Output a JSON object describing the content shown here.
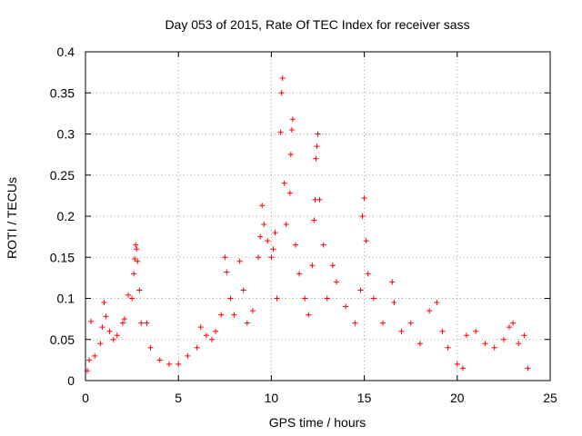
{
  "chart_data": {
    "type": "scatter",
    "title": "Day 053 of 2015, Rate Of TEC Index for receiver sass",
    "xlabel": "GPS time / hours",
    "ylabel": "ROTI / TECUs",
    "xlim": [
      0,
      25
    ],
    "ylim": [
      0,
      0.4
    ],
    "xticks": [
      "0",
      "5",
      "10",
      "15",
      "20",
      "25"
    ],
    "yticks": [
      "0",
      "0.05",
      "0.1",
      "0.15",
      "0.2",
      "0.25",
      "0.3",
      "0.35",
      "0.4"
    ],
    "grid": true,
    "marker": "+",
    "color": "#ff0000",
    "series": [
      {
        "points": [
          [
            0.1,
            0.012
          ],
          [
            0.2,
            0.025
          ],
          [
            0.3,
            0.072
          ],
          [
            0.5,
            0.03
          ],
          [
            0.8,
            0.045
          ],
          [
            0.9,
            0.065
          ],
          [
            1.0,
            0.095
          ],
          [
            1.1,
            0.078
          ],
          [
            1.3,
            0.06
          ],
          [
            1.5,
            0.05
          ],
          [
            1.7,
            0.055
          ],
          [
            2.0,
            0.07
          ],
          [
            2.1,
            0.075
          ],
          [
            2.3,
            0.104
          ],
          [
            2.5,
            0.1
          ],
          [
            2.6,
            0.13
          ],
          [
            2.65,
            0.148
          ],
          [
            2.7,
            0.165
          ],
          [
            2.75,
            0.16
          ],
          [
            2.8,
            0.145
          ],
          [
            2.9,
            0.11
          ],
          [
            3.0,
            0.07
          ],
          [
            3.3,
            0.07
          ],
          [
            3.5,
            0.04
          ],
          [
            4.0,
            0.025
          ],
          [
            4.5,
            0.02
          ],
          [
            5.0,
            0.02
          ],
          [
            5.5,
            0.03
          ],
          [
            6.0,
            0.04
          ],
          [
            6.2,
            0.065
          ],
          [
            6.5,
            0.055
          ],
          [
            6.8,
            0.05
          ],
          [
            7.0,
            0.06
          ],
          [
            7.3,
            0.08
          ],
          [
            7.5,
            0.15
          ],
          [
            7.6,
            0.132
          ],
          [
            7.8,
            0.1
          ],
          [
            8.0,
            0.08
          ],
          [
            8.3,
            0.145
          ],
          [
            8.5,
            0.11
          ],
          [
            8.7,
            0.07
          ],
          [
            9.0,
            0.085
          ],
          [
            9.3,
            0.15
          ],
          [
            9.4,
            0.175
          ],
          [
            9.5,
            0.213
          ],
          [
            9.6,
            0.19
          ],
          [
            9.8,
            0.17
          ],
          [
            10.0,
            0.15
          ],
          [
            10.1,
            0.16
          ],
          [
            10.2,
            0.18
          ],
          [
            10.3,
            0.1
          ],
          [
            10.5,
            0.302
          ],
          [
            10.55,
            0.35
          ],
          [
            10.6,
            0.368
          ],
          [
            10.7,
            0.24
          ],
          [
            10.8,
            0.19
          ],
          [
            11.0,
            0.228
          ],
          [
            11.05,
            0.275
          ],
          [
            11.1,
            0.305
          ],
          [
            11.15,
            0.318
          ],
          [
            11.3,
            0.165
          ],
          [
            11.5,
            0.13
          ],
          [
            11.8,
            0.1
          ],
          [
            12.0,
            0.08
          ],
          [
            12.2,
            0.14
          ],
          [
            12.3,
            0.195
          ],
          [
            12.35,
            0.22
          ],
          [
            12.4,
            0.27
          ],
          [
            12.45,
            0.285
          ],
          [
            12.5,
            0.3
          ],
          [
            12.6,
            0.22
          ],
          [
            12.8,
            0.165
          ],
          [
            13.0,
            0.1
          ],
          [
            13.3,
            0.14
          ],
          [
            13.5,
            0.12
          ],
          [
            14.0,
            0.09
          ],
          [
            14.5,
            0.07
          ],
          [
            14.8,
            0.11
          ],
          [
            14.9,
            0.2
          ],
          [
            15.0,
            0.222
          ],
          [
            15.1,
            0.17
          ],
          [
            15.2,
            0.13
          ],
          [
            15.5,
            0.1
          ],
          [
            16.0,
            0.07
          ],
          [
            16.5,
            0.12
          ],
          [
            16.6,
            0.095
          ],
          [
            17.0,
            0.06
          ],
          [
            17.5,
            0.07
          ],
          [
            18.0,
            0.045
          ],
          [
            18.5,
            0.085
          ],
          [
            18.9,
            0.095
          ],
          [
            19.2,
            0.06
          ],
          [
            19.5,
            0.04
          ],
          [
            20.0,
            0.02
          ],
          [
            20.3,
            0.015
          ],
          [
            20.5,
            0.055
          ],
          [
            21.0,
            0.06
          ],
          [
            21.5,
            0.045
          ],
          [
            22.0,
            0.04
          ],
          [
            22.5,
            0.05
          ],
          [
            22.8,
            0.065
          ],
          [
            23.0,
            0.07
          ],
          [
            23.3,
            0.045
          ],
          [
            23.6,
            0.055
          ],
          [
            23.8,
            0.015
          ]
        ]
      }
    ]
  }
}
